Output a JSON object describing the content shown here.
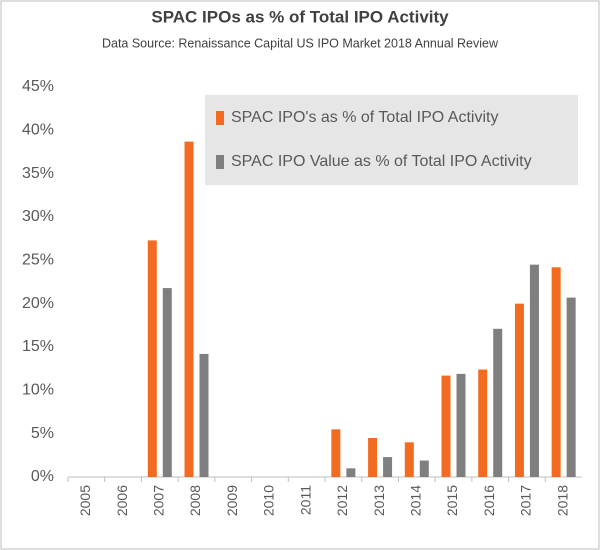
{
  "chart_data": {
    "type": "bar",
    "title": "SPAC IPOs as % of Total IPO Activity",
    "subtitle": "Data Source:  Renaissance Capital US IPO Market 2018 Annual  Review",
    "categories": [
      "2005",
      "2006",
      "2007",
      "2008",
      "2009",
      "2010",
      "2011",
      "2012",
      "2013",
      "2014",
      "2015",
      "2016",
      "2017",
      "2018"
    ],
    "series": [
      {
        "name": "SPAC IPO's as % of Total IPO Activity",
        "color": "#f26b21",
        "values": [
          0,
          0,
          27.3,
          38.7,
          0,
          0,
          0,
          5.5,
          4.5,
          4.0,
          11.7,
          12.4,
          20.0,
          24.2
        ]
      },
      {
        "name": "SPAC IPO Value as % of Total IPO Activity",
        "color": "#7f7f7f",
        "values": [
          0,
          0,
          21.8,
          14.2,
          0,
          0,
          0,
          1.0,
          2.3,
          1.9,
          11.9,
          17.1,
          24.5,
          20.7
        ]
      }
    ],
    "ylim": [
      0,
      45
    ],
    "yticks": [
      {
        "value": 0,
        "label": "0%"
      },
      {
        "value": 5,
        "label": "5%"
      },
      {
        "value": 10,
        "label": "10%"
      },
      {
        "value": 15,
        "label": "15%"
      },
      {
        "value": 20,
        "label": "20%"
      },
      {
        "value": 25,
        "label": "25%"
      },
      {
        "value": 30,
        "label": "30%"
      },
      {
        "value": 35,
        "label": "35%"
      },
      {
        "value": 40,
        "label": "40%"
      },
      {
        "value": 45,
        "label": "45%"
      }
    ],
    "grid": false,
    "legend": "top-right"
  }
}
